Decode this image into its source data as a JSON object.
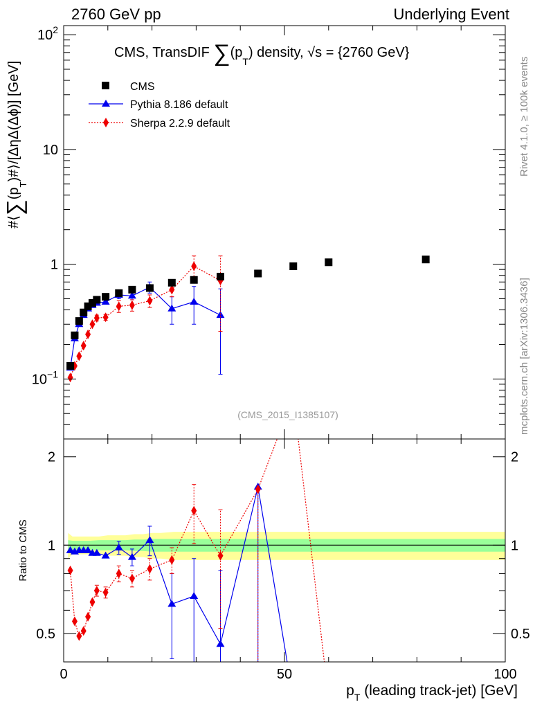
{
  "header": {
    "left": "2760 GeV pp",
    "right": "Underlying Event"
  },
  "side_labels": {
    "rivet": "Rivet 4.1.0, ≥ 100k events",
    "mcplots": "mcplots.cern.ch [arXiv:1306.3436]"
  },
  "colors": {
    "cms": "#000000",
    "pythia": "#0000ee",
    "sherpa": "#ee0000",
    "band_inner": "#99ff99",
    "band_outer": "#ffff99",
    "watermark": "#999999"
  },
  "chart_data": [
    {
      "type": "scatter",
      "panel": "main",
      "title_main": "CMS, TransDIF ∑(pₜ) density, √s = {2760 GeV}",
      "title_parts": {
        "prefix": "CMS, TransDIF ",
        "sigma": "∑",
        "p": "(p",
        "sub": "T",
        "suffix": ") density, √s = {2760 GeV}"
      },
      "ylabel": "#⟨∑(p_T)#⟩/[ΔηΔ(Δϕ)] [GeV]",
      "ylabel_parts": {
        "a": "#⟨",
        "sigma": "∑",
        "b": "(p",
        "sub": "T",
        "c": ")#⟩/[ΔηΔ(Δϕ)] [GeV]"
      },
      "yscale": "log",
      "ylim": [
        0.03,
        120
      ],
      "xlim": [
        0,
        100
      ],
      "yticks": [
        {
          "value": 0.1,
          "base": "10",
          "exp": "−1"
        },
        {
          "value": 1,
          "base": "1",
          "exp": ""
        },
        {
          "value": 10,
          "base": "10",
          "exp": ""
        },
        {
          "value": 100,
          "base": "10",
          "exp": "2"
        }
      ],
      "watermark": "(CMS_2015_I1385107)",
      "legend_position": "top-left",
      "series": [
        {
          "name": "CMS",
          "key": "cms",
          "marker": "square",
          "x": [
            1.5,
            2.5,
            3.5,
            4.5,
            5.5,
            6.5,
            7.5,
            9.5,
            12.5,
            15.5,
            19.5,
            24.5,
            29.5,
            35.5,
            44,
            52,
            60,
            82
          ],
          "y": [
            0.13,
            0.24,
            0.32,
            0.38,
            0.43,
            0.46,
            0.49,
            0.52,
            0.56,
            0.6,
            0.62,
            0.69,
            0.73,
            0.78,
            0.83,
            0.96,
            1.04,
            1.1
          ]
        },
        {
          "name": "Pythia 8.186 default",
          "key": "pythia",
          "marker": "triangle",
          "x": [
            1.5,
            2.5,
            3.5,
            4.5,
            5.5,
            6.5,
            7.5,
            9.5,
            12.5,
            15.5,
            19.5,
            24.5,
            29.5,
            35.5
          ],
          "y": [
            0.125,
            0.225,
            0.3,
            0.36,
            0.41,
            0.44,
            0.46,
            0.47,
            0.54,
            0.53,
            0.63,
            0.41,
            0.47,
            0.36
          ],
          "err_low": [
            0,
            0,
            0,
            0,
            0,
            0,
            0,
            0,
            0.04,
            0.04,
            0.07,
            0.11,
            0.17,
            0.25
          ],
          "err_high": [
            0,
            0,
            0,
            0,
            0,
            0,
            0,
            0,
            0.04,
            0.04,
            0.07,
            0.11,
            0.17,
            0.25
          ]
        },
        {
          "name": "Sherpa 2.2.9 default",
          "key": "sherpa",
          "marker": "diamond",
          "x": [
            1.5,
            2.5,
            3.5,
            4.5,
            5.5,
            6.5,
            7.5,
            9.5,
            12.5,
            15.5,
            19.5,
            24.5,
            29.5,
            35.5
          ],
          "y": [
            0.103,
            0.13,
            0.158,
            0.195,
            0.245,
            0.3,
            0.34,
            0.345,
            0.43,
            0.44,
            0.48,
            0.6,
            0.96,
            0.72
          ],
          "err_low": [
            0,
            0,
            0,
            0,
            0,
            0,
            0.02,
            0.02,
            0.05,
            0.05,
            0.06,
            0.08,
            0.22,
            0.46
          ],
          "err_high": [
            0,
            0,
            0,
            0,
            0,
            0,
            0.02,
            0.02,
            0.05,
            0.05,
            0.06,
            0.08,
            0.22,
            0.46
          ]
        }
      ]
    },
    {
      "type": "line",
      "panel": "ratio",
      "ylabel": "Ratio to CMS",
      "xlabel": "p_T (leading track-jet) [GeV]",
      "xlabel_parts": {
        "p": "p",
        "sub": "T",
        "rest": " (leading track-jet) [GeV]"
      },
      "yscale": "log",
      "ylim": [
        0.4,
        2.3
      ],
      "xlim": [
        0,
        100
      ],
      "xticks": [
        {
          "value": 0,
          "label": "0"
        },
        {
          "value": 50,
          "label": "50"
        },
        {
          "value": 100,
          "label": "100"
        }
      ],
      "yticks": [
        {
          "value": 0.5,
          "label": "0.5"
        },
        {
          "value": 1,
          "label": "1"
        },
        {
          "value": 2,
          "label": "2"
        }
      ],
      "bands": {
        "x": [
          1,
          2,
          4,
          6,
          8,
          10,
          12,
          14,
          16,
          18,
          20,
          22,
          25,
          30,
          40,
          50,
          60,
          80,
          100
        ],
        "inner": [
          0.04,
          0.035,
          0.035,
          0.035,
          0.04,
          0.04,
          0.04,
          0.04,
          0.045,
          0.045,
          0.05,
          0.05,
          0.05,
          0.05,
          0.05,
          0.05,
          0.05,
          0.05,
          0.05
        ],
        "outer": [
          0.1,
          0.07,
          0.07,
          0.07,
          0.07,
          0.08,
          0.08,
          0.08,
          0.09,
          0.09,
          0.1,
          0.1,
          0.11,
          0.11,
          0.11,
          0.11,
          0.11,
          0.11,
          0.11
        ]
      },
      "series": [
        {
          "name": "Pythia 8.186 default",
          "key": "pythia",
          "marker": "triangle",
          "x": [
            1.5,
            2.5,
            3.5,
            4.5,
            5.5,
            6.5,
            7.5,
            9.5,
            12.5,
            15.5,
            19.5,
            24.5,
            29.5,
            35.5,
            44,
            52
          ],
          "y": [
            0.96,
            0.95,
            0.96,
            0.96,
            0.96,
            0.94,
            0.94,
            0.92,
            0.98,
            0.91,
            1.04,
            0.63,
            0.67,
            0.46,
            1.58,
            0.3
          ],
          "err_low": [
            0,
            0,
            0,
            0,
            0,
            0,
            0,
            0,
            0.05,
            0.06,
            0.12,
            0.22,
            0.32,
            0.2,
            1.3,
            0
          ],
          "err_high": [
            0,
            0,
            0,
            0,
            0,
            0,
            0,
            0,
            0.05,
            0.06,
            0.12,
            0.17,
            0.23,
            0.36,
            0,
            0
          ],
          "markers_shown": 15
        },
        {
          "name": "Sherpa 2.2.9 default",
          "key": "sherpa",
          "marker": "diamond",
          "x": [
            1.5,
            2.5,
            3.5,
            4.5,
            5.5,
            6.5,
            7.5,
            9.5,
            12.5,
            15.5,
            19.5,
            24.5,
            29.5,
            35.5,
            44,
            52,
            60
          ],
          "y": [
            0.82,
            0.55,
            0.49,
            0.51,
            0.57,
            0.64,
            0.7,
            0.69,
            0.8,
            0.77,
            0.83,
            0.89,
            1.31,
            0.92,
            1.55,
            3.2,
            0.3
          ],
          "err_low": [
            0,
            0,
            0,
            0,
            0,
            0,
            0.03,
            0.03,
            0.05,
            0.05,
            0.07,
            0.09,
            0.3,
            0.4,
            1.3,
            0,
            0
          ],
          "err_high": [
            0,
            0,
            0,
            0,
            0,
            0,
            0.03,
            0.03,
            0.05,
            0.05,
            0.07,
            0.09,
            0.3,
            0.4,
            0,
            0,
            0
          ],
          "markers_shown": 15
        }
      ]
    }
  ]
}
